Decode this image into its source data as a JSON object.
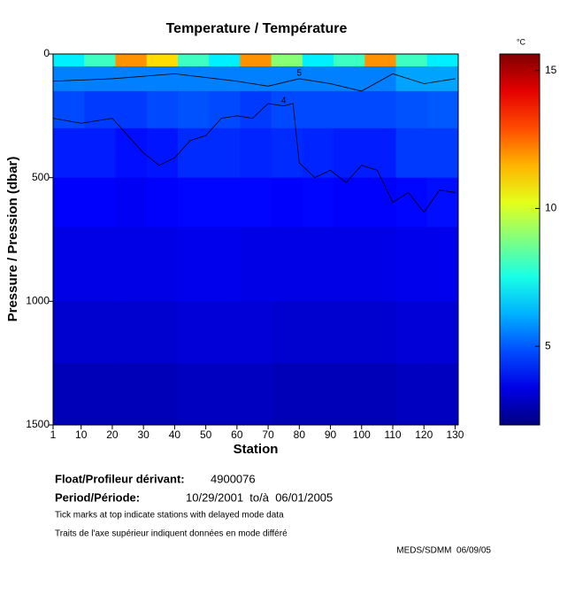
{
  "chart_data": {
    "type": "heatmap",
    "title": "Temperature / Température",
    "xlabel": "Station",
    "ylabel": "Pressure / Pression (dbar)",
    "x_bins": [
      1,
      11,
      21,
      31,
      41,
      51,
      61,
      71,
      81,
      91,
      101,
      111,
      121,
      131
    ],
    "y_bins": [
      0,
      50,
      150,
      300,
      500,
      700,
      1000,
      1250,
      1500
    ],
    "values": [
      [
        7,
        8,
        12,
        11,
        8,
        7,
        12,
        9,
        7,
        8,
        12,
        8,
        7
      ],
      [
        5.5,
        5.5,
        5.5,
        5.5,
        5.5,
        5.5,
        5.5,
        5.5,
        5.5,
        5.5,
        5.5,
        6,
        6
      ],
      [
        4.8,
        4.6,
        4.6,
        4.8,
        4.9,
        4.8,
        4.6,
        4.8,
        4.8,
        4.8,
        4.8,
        4.9,
        5
      ],
      [
        4.2,
        4.2,
        4,
        4.1,
        4.4,
        4.4,
        4.3,
        4.4,
        4.3,
        4.2,
        4.2,
        4.6,
        4.6
      ],
      [
        3.8,
        3.8,
        3.7,
        3.8,
        3.9,
        3.9,
        3.9,
        3.8,
        3.9,
        3.8,
        3.8,
        3.9,
        4
      ],
      [
        3.5,
        3.5,
        3.5,
        3.5,
        3.6,
        3.6,
        3.5,
        3.5,
        3.5,
        3.5,
        3.5,
        3.6,
        3.6
      ],
      [
        3.2,
        3.2,
        3.2,
        3.2,
        3.3,
        3.3,
        3.3,
        3.2,
        3.2,
        3.2,
        3.2,
        3.3,
        3.3
      ],
      [
        2.9,
        2.9,
        2.9,
        2.9,
        3,
        3,
        3,
        2.9,
        2.9,
        2.9,
        2.9,
        3,
        3
      ]
    ],
    "contours": [
      {
        "level": 4,
        "x": [
          1,
          10,
          20,
          25,
          30,
          35,
          40,
          45,
          50,
          55,
          60,
          65,
          70,
          75,
          78,
          80,
          85,
          90,
          95,
          100,
          105,
          110,
          115,
          120,
          125,
          130
        ],
        "y": [
          260,
          280,
          260,
          330,
          400,
          450,
          420,
          350,
          330,
          260,
          250,
          260,
          200,
          210,
          200,
          440,
          500,
          470,
          520,
          450,
          470,
          600,
          560,
          640,
          550,
          560
        ]
      },
      {
        "level": 5,
        "x": [
          1,
          20,
          40,
          60,
          70,
          80,
          90,
          100,
          110,
          120,
          130
        ],
        "y": [
          110,
          100,
          80,
          110,
          130,
          100,
          120,
          150,
          80,
          120,
          100
        ]
      }
    ],
    "xlim": [
      1,
      131
    ],
    "xticks": [
      1,
      10,
      20,
      30,
      40,
      50,
      60,
      70,
      80,
      90,
      100,
      110,
      120,
      130
    ],
    "ylim": [
      0,
      1500
    ],
    "yticks": [
      0,
      500,
      1000,
      1500
    ],
    "colorbar": {
      "label": "°C",
      "lim": [
        2.15,
        15.6
      ],
      "ticks": [
        5,
        10,
        15
      ]
    }
  },
  "footer": {
    "float_label": "Float/Profileur dérivant:",
    "float_id": "4900076",
    "period_label": "Period/Période:",
    "period": "10/29/2001  to/à  06/01/2005",
    "note1": "Tick marks at top indicate stations with delayed mode data",
    "note2": "Traits de l'axe supérieur indiquent données en mode différé",
    "credit": "MEDS/SDMM  06/09/05"
  }
}
